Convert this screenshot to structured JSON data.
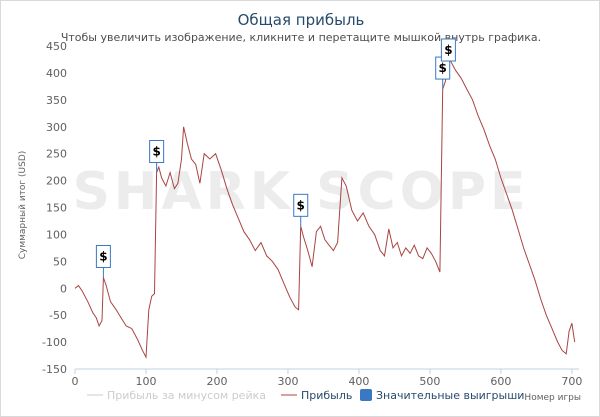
{
  "chart_data": {
    "type": "line",
    "title": "Общая прибыль",
    "subtitle": "Чтобы увеличить изображение, кликните и перетащите мышкой внутрь графика.",
    "xlabel": "Номер игры",
    "ylabel": "Суммарный итог (USD)",
    "xlim": [
      0,
      710
    ],
    "ylim": [
      -150,
      450
    ],
    "x_ticks": [
      "0",
      "100",
      "200",
      "300",
      "400",
      "500",
      "600",
      "700"
    ],
    "y_ticks": [
      "-150",
      "-100",
      "-50",
      "0",
      "50",
      "100",
      "150",
      "200",
      "250",
      "300",
      "350",
      "400",
      "450"
    ],
    "series": [
      {
        "name": "Прибыль",
        "color": "#a94442",
        "points": [
          [
            0,
            0
          ],
          [
            5,
            5
          ],
          [
            10,
            -5
          ],
          [
            18,
            -25
          ],
          [
            25,
            -45
          ],
          [
            30,
            -55
          ],
          [
            34,
            -70
          ],
          [
            38,
            -60
          ],
          [
            40,
            20
          ],
          [
            44,
            5
          ],
          [
            50,
            -25
          ],
          [
            58,
            -40
          ],
          [
            65,
            -55
          ],
          [
            72,
            -70
          ],
          [
            80,
            -75
          ],
          [
            88,
            -95
          ],
          [
            95,
            -115
          ],
          [
            100,
            -128
          ],
          [
            104,
            -40
          ],
          [
            108,
            -15
          ],
          [
            112,
            -10
          ],
          [
            115,
            215
          ],
          [
            118,
            225
          ],
          [
            122,
            205
          ],
          [
            128,
            190
          ],
          [
            134,
            215
          ],
          [
            140,
            185
          ],
          [
            145,
            195
          ],
          [
            150,
            240
          ],
          [
            153,
            300
          ],
          [
            158,
            270
          ],
          [
            164,
            240
          ],
          [
            170,
            230
          ],
          [
            176,
            195
          ],
          [
            182,
            250
          ],
          [
            190,
            240
          ],
          [
            198,
            250
          ],
          [
            206,
            220
          ],
          [
            214,
            185
          ],
          [
            222,
            155
          ],
          [
            230,
            130
          ],
          [
            238,
            105
          ],
          [
            246,
            90
          ],
          [
            254,
            70
          ],
          [
            262,
            85
          ],
          [
            270,
            60
          ],
          [
            278,
            50
          ],
          [
            286,
            35
          ],
          [
            294,
            10
          ],
          [
            302,
            -15
          ],
          [
            310,
            -35
          ],
          [
            315,
            -40
          ],
          [
            318,
            115
          ],
          [
            322,
            95
          ],
          [
            328,
            70
          ],
          [
            334,
            40
          ],
          [
            340,
            105
          ],
          [
            346,
            115
          ],
          [
            352,
            90
          ],
          [
            358,
            80
          ],
          [
            364,
            70
          ],
          [
            370,
            85
          ],
          [
            376,
            205
          ],
          [
            382,
            190
          ],
          [
            390,
            145
          ],
          [
            398,
            125
          ],
          [
            406,
            140
          ],
          [
            414,
            115
          ],
          [
            422,
            100
          ],
          [
            430,
            70
          ],
          [
            436,
            60
          ],
          [
            442,
            110
          ],
          [
            448,
            75
          ],
          [
            454,
            85
          ],
          [
            460,
            60
          ],
          [
            466,
            75
          ],
          [
            472,
            65
          ],
          [
            478,
            80
          ],
          [
            484,
            60
          ],
          [
            490,
            55
          ],
          [
            496,
            75
          ],
          [
            502,
            65
          ],
          [
            508,
            50
          ],
          [
            514,
            30
          ],
          [
            518,
            370
          ],
          [
            522,
            385
          ],
          [
            526,
            440
          ],
          [
            530,
            420
          ],
          [
            536,
            405
          ],
          [
            544,
            390
          ],
          [
            552,
            370
          ],
          [
            560,
            350
          ],
          [
            568,
            320
          ],
          [
            576,
            295
          ],
          [
            584,
            265
          ],
          [
            592,
            240
          ],
          [
            600,
            205
          ],
          [
            608,
            175
          ],
          [
            616,
            145
          ],
          [
            624,
            110
          ],
          [
            632,
            75
          ],
          [
            640,
            45
          ],
          [
            648,
            15
          ],
          [
            656,
            -20
          ],
          [
            664,
            -50
          ],
          [
            672,
            -75
          ],
          [
            680,
            -100
          ],
          [
            686,
            -115
          ],
          [
            692,
            -122
          ],
          [
            696,
            -80
          ],
          [
            700,
            -65
          ],
          [
            704,
            -100
          ]
        ]
      },
      {
        "name": "Прибыль за минусом рейка",
        "color": "#cccccc",
        "visible": false
      },
      {
        "name": "Значительные выигрыши",
        "color": "#3a78c3"
      }
    ],
    "flags": [
      {
        "x": 40,
        "label": "$"
      },
      {
        "x": 115,
        "label": "$"
      },
      {
        "x": 318,
        "label": "$"
      },
      {
        "x": 518,
        "label": "$"
      },
      {
        "x": 526,
        "label": "$"
      }
    ],
    "legend_position": "bottom",
    "grid": false
  },
  "watermark": "SHARK SCOPE"
}
